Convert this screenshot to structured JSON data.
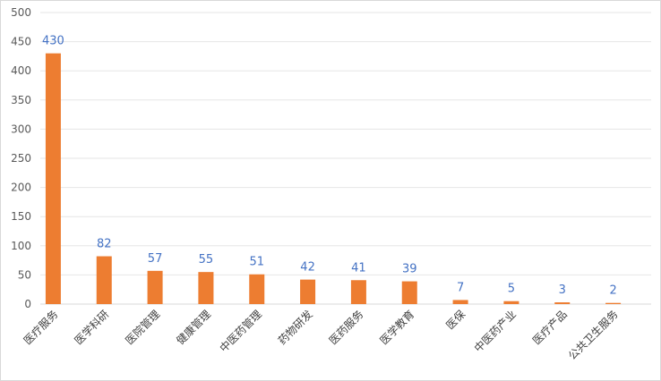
{
  "chart_data": {
    "type": "bar",
    "categories": [
      "医疗服务",
      "医学科研",
      "医院管理",
      "健康管理",
      "中医药管理",
      "药物研发",
      "医药服务",
      "医学教育",
      "医保",
      "中医药产业",
      "医疗产品",
      "公共卫生服务"
    ],
    "values": [
      430,
      82,
      57,
      55,
      51,
      42,
      41,
      39,
      7,
      5,
      3,
      2
    ],
    "ylim": [
      0,
      500
    ],
    "yticks": [
      0,
      50,
      100,
      150,
      200,
      250,
      300,
      350,
      400,
      450,
      500
    ],
    "grid": true,
    "bar_color": "#ed7d31",
    "data_label_color": "#4472c4",
    "title": "",
    "xlabel": "",
    "ylabel": ""
  }
}
